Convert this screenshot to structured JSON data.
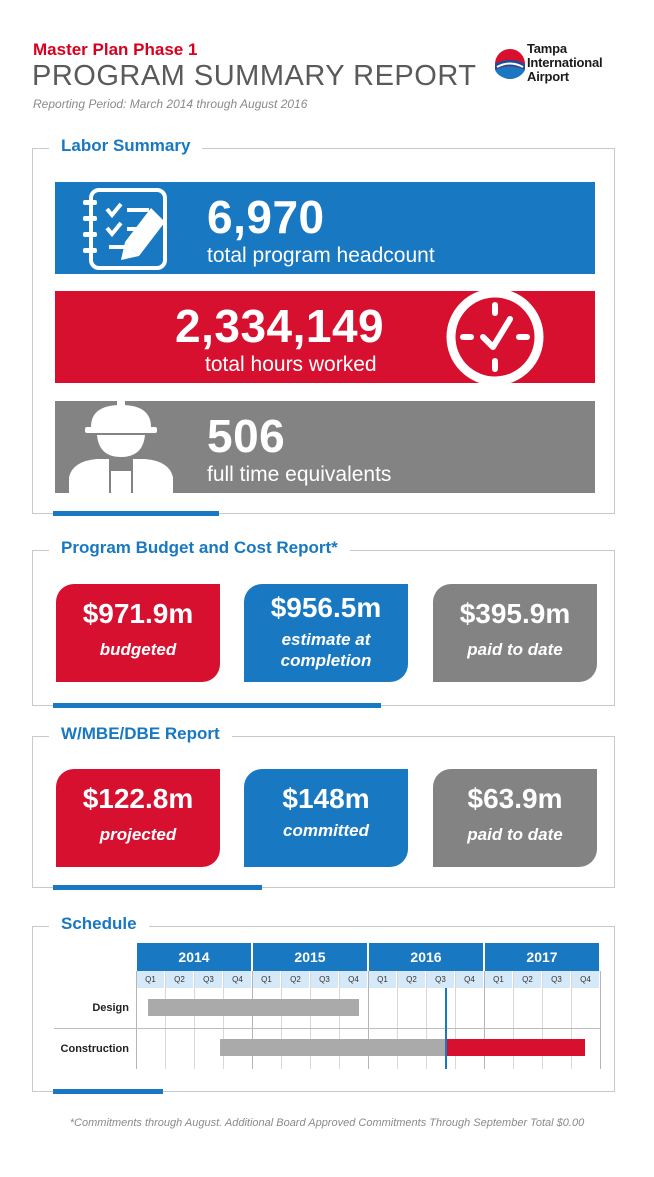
{
  "header": {
    "kicker": "Master Plan Phase 1",
    "title": "PROGRAM SUMMARY REPORT",
    "period": "Reporting Period: March 2014 through August 2016"
  },
  "logo": {
    "line1": "Tampa",
    "line2": "International",
    "line3": "Airport"
  },
  "labor": {
    "title": "Labor Summary",
    "headcount": {
      "value": "6,970",
      "caption": "total program headcount",
      "icon": "checklist-icon",
      "color": "#1878c2"
    },
    "hours": {
      "value": "2,334,149",
      "caption": "total hours worked",
      "icon": "clock-icon",
      "color": "#d7102f"
    },
    "fte": {
      "value": "506",
      "caption": "full time equivalents",
      "icon": "construction-worker-icon",
      "color": "#838383"
    }
  },
  "budget": {
    "title": "Program Budget and Cost Report*",
    "cards": [
      {
        "value": "$971.9m",
        "label": "budgeted",
        "color": "#d7102f"
      },
      {
        "value": "$956.5m",
        "label_line1": "estimate at",
        "label_line2": "completion",
        "color": "#1878c2"
      },
      {
        "value": "$395.9m",
        "label": "paid to date",
        "color": "#838383"
      }
    ]
  },
  "wmbe": {
    "title": "W/MBE/DBE Report",
    "cards": [
      {
        "value": "$122.8m",
        "label": "projected",
        "color": "#d7102f"
      },
      {
        "value": "$148m",
        "label": "committed",
        "color": "#1878c2"
      },
      {
        "value": "$63.9m",
        "label": "paid to date",
        "color": "#838383"
      }
    ]
  },
  "schedule": {
    "title": "Schedule",
    "years": [
      "2014",
      "2015",
      "2016",
      "2017"
    ],
    "quarters": [
      "Q1",
      "Q2",
      "Q3",
      "Q4"
    ],
    "rows": [
      {
        "label": "Design",
        "segments": [
          {
            "start": 0.4,
            "end": 7.7,
            "color": "#aaaaaa"
          }
        ]
      },
      {
        "label": "Construction",
        "segments": [
          {
            "start": 2.9,
            "end": 10.7,
            "color": "#aaaaaa"
          },
          {
            "start": 10.7,
            "end": 15.5,
            "color": "#d7102f"
          }
        ]
      }
    ],
    "today_marker": 10.7
  },
  "footnote": "*Commitments through August. Additional Board Approved Commitments Through September Total $0.00"
}
